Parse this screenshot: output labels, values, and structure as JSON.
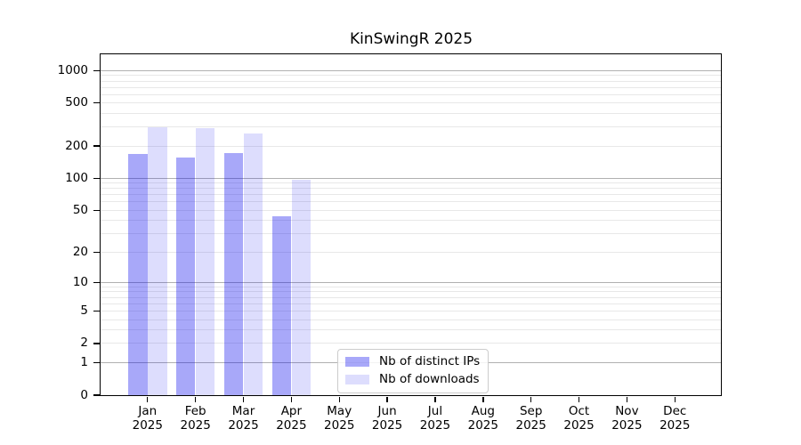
{
  "figure": {
    "background_color": "#ffffff",
    "text_color": "#000000"
  },
  "chart_data": {
    "type": "bar",
    "title": "KinSwingR 2025",
    "xlabel": "",
    "ylabel": "",
    "categories": [
      "Jan 2025",
      "Feb 2025",
      "Mar 2025",
      "Apr 2025",
      "May 2025",
      "Jun 2025",
      "Jul 2025",
      "Aug 2025",
      "Sep 2025",
      "Oct 2025",
      "Nov 2025",
      "Dec 2025"
    ],
    "series": [
      {
        "name": "Nb of distinct IPs",
        "values": [
          170,
          157,
          173,
          44,
          0,
          0,
          0,
          0,
          0,
          0,
          0,
          0
        ],
        "color": "rgba(0,0,238,0.34)"
      },
      {
        "name": "Nb of downloads",
        "values": [
          300,
          293,
          262,
          97,
          0,
          0,
          0,
          0,
          0,
          0,
          0,
          0
        ],
        "color": "rgba(0,0,238,0.135)"
      }
    ],
    "y_scale": "log1p",
    "y_ticks": [
      0,
      1,
      2,
      5,
      10,
      20,
      50,
      100,
      200,
      500,
      1000
    ],
    "ylim": [
      0,
      1413
    ],
    "grid": {
      "major_values": [
        1,
        10,
        100,
        1000
      ],
      "minor_values": [
        2,
        3,
        4,
        5,
        6,
        7,
        8,
        9,
        20,
        30,
        40,
        50,
        60,
        70,
        80,
        90,
        200,
        300,
        400,
        500,
        600,
        700,
        800,
        900
      ],
      "major_color": "#b0b0b0",
      "minor_color": "#e8e8e8"
    },
    "legend": {
      "position": "inside-bottom-center",
      "entries": [
        "Nb of distinct IPs",
        "Nb of downloads"
      ]
    }
  }
}
